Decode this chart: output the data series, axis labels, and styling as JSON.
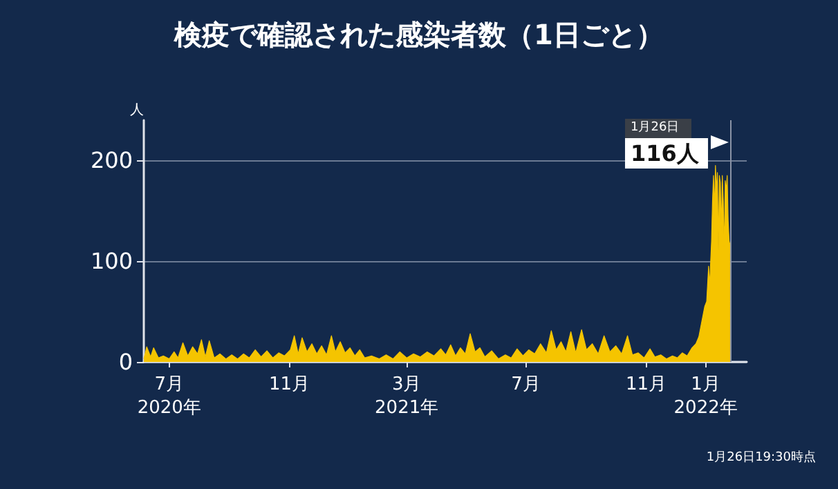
{
  "chart_data": {
    "type": "area",
    "title": "検疫で確認された感染者数（1日ごと）",
    "ylabel": "人",
    "annotations": [
      "1月26日",
      "116人",
      "1月26日19:30時点"
    ],
    "ref_lines": [
      {
        "axis": "x",
        "value": "2022-01-26",
        "color": "#8a93a6"
      }
    ],
    "xlim": [
      "2020-06-05",
      "2022-02-12"
    ],
    "xticks": [
      {
        "value": "2020-07-01",
        "label": "7月\n2020年"
      },
      {
        "value": "2020-11-01",
        "label": "11月"
      },
      {
        "value": "2021-03-01",
        "label": "3月\n2021年"
      },
      {
        "value": "2021-07-01",
        "label": "7月"
      },
      {
        "value": "2021-11-01",
        "label": "11月"
      },
      {
        "value": "2022-01-01",
        "label": "1月\n2022年"
      }
    ],
    "ylim": [
      0,
      240
    ],
    "yticks": [
      0,
      100,
      200
    ],
    "grid": "y",
    "series": [
      {
        "color": "#f5c400",
        "x": [
          "2020-06-05",
          "2020-06-08",
          "2020-06-12",
          "2020-06-15",
          "2020-06-20",
          "2020-06-25",
          "2020-07-01",
          "2020-07-06",
          "2020-07-10",
          "2020-07-15",
          "2020-07-20",
          "2020-07-25",
          "2020-07-30",
          "2020-08-03",
          "2020-08-07",
          "2020-08-11",
          "2020-08-16",
          "2020-08-22",
          "2020-08-28",
          "2020-09-03",
          "2020-09-09",
          "2020-09-15",
          "2020-09-21",
          "2020-09-27",
          "2020-10-03",
          "2020-10-09",
          "2020-10-15",
          "2020-10-21",
          "2020-10-27",
          "2020-11-02",
          "2020-11-06",
          "2020-11-10",
          "2020-11-14",
          "2020-11-19",
          "2020-11-24",
          "2020-11-29",
          "2020-12-04",
          "2020-12-09",
          "2020-12-14",
          "2020-12-18",
          "2020-12-23",
          "2020-12-28",
          "2021-01-02",
          "2021-01-07",
          "2021-01-12",
          "2021-01-17",
          "2021-01-24",
          "2021-02-01",
          "2021-02-08",
          "2021-02-15",
          "2021-02-22",
          "2021-03-01",
          "2021-03-08",
          "2021-03-15",
          "2021-03-22",
          "2021-03-29",
          "2021-04-05",
          "2021-04-10",
          "2021-04-15",
          "2021-04-20",
          "2021-04-25",
          "2021-04-30",
          "2021-05-05",
          "2021-05-10",
          "2021-05-15",
          "2021-05-20",
          "2021-05-27",
          "2021-06-03",
          "2021-06-10",
          "2021-06-16",
          "2021-06-22",
          "2021-06-28",
          "2021-07-04",
          "2021-07-10",
          "2021-07-16",
          "2021-07-22",
          "2021-07-27",
          "2021-08-01",
          "2021-08-06",
          "2021-08-11",
          "2021-08-16",
          "2021-08-21",
          "2021-08-27",
          "2021-09-01",
          "2021-09-07",
          "2021-09-13",
          "2021-09-19",
          "2021-09-25",
          "2021-10-01",
          "2021-10-07",
          "2021-10-13",
          "2021-10-18",
          "2021-10-24",
          "2021-10-30",
          "2021-11-05",
          "2021-11-10",
          "2021-11-16",
          "2021-11-22",
          "2021-11-28",
          "2021-12-03",
          "2021-12-08",
          "2021-12-13",
          "2021-12-18",
          "2021-12-22",
          "2021-12-25",
          "2021-12-28",
          "2021-12-31",
          "2022-01-02",
          "2022-01-04",
          "2022-01-05",
          "2022-01-07",
          "2022-01-08",
          "2022-01-09",
          "2022-01-10",
          "2022-01-11",
          "2022-01-12",
          "2022-01-13",
          "2022-01-14",
          "2022-01-15",
          "2022-01-16",
          "2022-01-17",
          "2022-01-18",
          "2022-01-19",
          "2022-01-20",
          "2022-01-21",
          "2022-01-22",
          "2022-01-23",
          "2022-01-24",
          "2022-01-25",
          "2022-01-26"
        ],
        "values": [
          3,
          15,
          5,
          14,
          4,
          6,
          3,
          10,
          4,
          19,
          6,
          15,
          8,
          22,
          5,
          21,
          4,
          8,
          3,
          7,
          3,
          8,
          4,
          12,
          5,
          11,
          4,
          9,
          6,
          12,
          26,
          8,
          24,
          10,
          18,
          8,
          16,
          7,
          26,
          10,
          20,
          9,
          14,
          6,
          12,
          4,
          6,
          3,
          7,
          3,
          10,
          4,
          8,
          5,
          10,
          6,
          13,
          7,
          17,
          6,
          14,
          8,
          28,
          10,
          14,
          5,
          11,
          3,
          7,
          4,
          13,
          6,
          12,
          8,
          18,
          9,
          31,
          12,
          20,
          10,
          30,
          9,
          32,
          12,
          18,
          8,
          26,
          10,
          16,
          8,
          26,
          7,
          9,
          4,
          13,
          5,
          7,
          3,
          6,
          4,
          9,
          6,
          14,
          18,
          25,
          40,
          55,
          60,
          95,
          75,
          120,
          160,
          185,
          150,
          195,
          170,
          188,
          110,
          185,
          178,
          130,
          185,
          160,
          108,
          180,
          170,
          185,
          140,
          120,
          116
        ]
      }
    ]
  }
}
